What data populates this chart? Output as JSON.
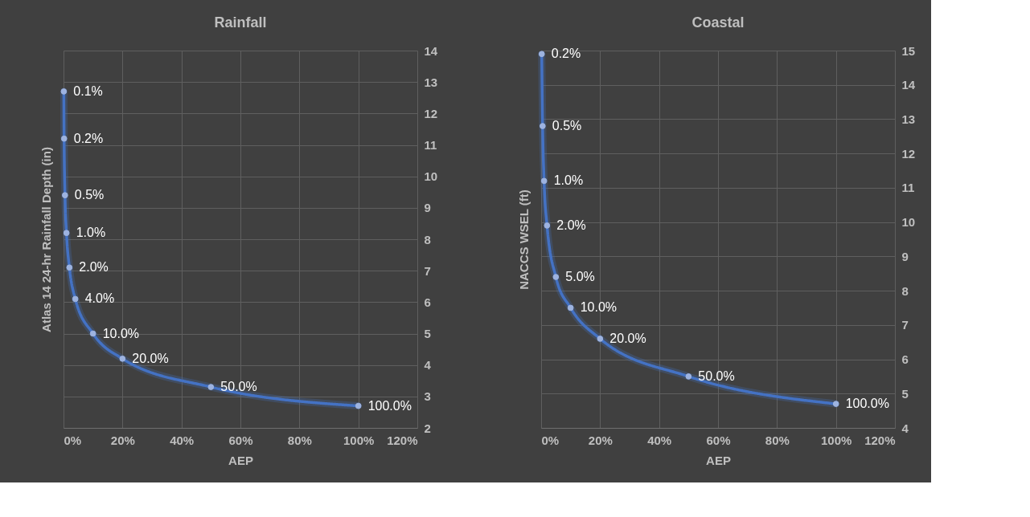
{
  "chart_data": [
    {
      "type": "line",
      "title": "Rainfall",
      "xlabel": "AEP",
      "ylabel": "Atlas 14 24-hr Rainfall Depth (in)",
      "color": "#4472c4",
      "marker": "circle",
      "grid": true,
      "legend": false,
      "x": [
        0.1,
        0.2,
        0.5,
        1,
        2,
        4,
        10,
        20,
        50,
        100
      ],
      "values": [
        12.7,
        11.2,
        9.4,
        8.2,
        7.1,
        6.1,
        5.0,
        4.2,
        3.3,
        2.7
      ],
      "annotations": [
        {
          "text": "0.1%",
          "x": 0.1,
          "y": 12.7
        },
        {
          "text": "0.2%",
          "x": 0.2,
          "y": 11.2
        },
        {
          "text": "0.5%",
          "x": 0.5,
          "y": 9.4
        },
        {
          "text": "1.0%",
          "x": 1,
          "y": 8.2
        },
        {
          "text": "2.0%",
          "x": 2,
          "y": 7.1
        },
        {
          "text": "4.0%",
          "x": 4,
          "y": 6.1
        },
        {
          "text": "10.0%",
          "x": 10,
          "y": 5.0
        },
        {
          "text": "20.0%",
          "x": 20,
          "y": 4.2
        },
        {
          "text": "50.0%",
          "x": 50,
          "y": 3.3
        },
        {
          "text": "100.0%",
          "x": 100,
          "y": 2.7
        }
      ],
      "xlim": [
        0,
        120
      ],
      "xticks": [
        {
          "value": 0,
          "label": "0%"
        },
        {
          "value": 20,
          "label": "20%"
        },
        {
          "value": 40,
          "label": "40%"
        },
        {
          "value": 60,
          "label": "60%"
        },
        {
          "value": 80,
          "label": "80%"
        },
        {
          "value": 100,
          "label": "100%"
        },
        {
          "value": 120,
          "label": "120%"
        }
      ],
      "ylim": [
        2,
        14
      ],
      "yticks": [
        2,
        3,
        4,
        5,
        6,
        7,
        8,
        9,
        10,
        11,
        12,
        13,
        14
      ]
    },
    {
      "type": "line",
      "title": "Coastal",
      "xlabel": "AEP",
      "ylabel": "NACCS WSEL (ft)",
      "color": "#4472c4",
      "marker": "circle",
      "grid": true,
      "legend": false,
      "x": [
        0.2,
        0.5,
        1,
        2,
        5,
        10,
        20,
        50,
        100
      ],
      "values": [
        14.9,
        12.8,
        11.2,
        9.9,
        8.4,
        7.5,
        6.6,
        5.5,
        4.7
      ],
      "annotations": [
        {
          "text": "0.2%",
          "x": 0.2,
          "y": 14.9
        },
        {
          "text": "0.5%",
          "x": 0.5,
          "y": 12.8
        },
        {
          "text": "1.0%",
          "x": 1,
          "y": 11.2
        },
        {
          "text": "2.0%",
          "x": 2,
          "y": 9.9
        },
        {
          "text": "5.0%",
          "x": 5,
          "y": 8.4
        },
        {
          "text": "10.0%",
          "x": 10,
          "y": 7.5
        },
        {
          "text": "20.0%",
          "x": 20,
          "y": 6.6
        },
        {
          "text": "50.0%",
          "x": 50,
          "y": 5.5
        },
        {
          "text": "100.0%",
          "x": 100,
          "y": 4.7
        }
      ],
      "xlim": [
        0,
        120
      ],
      "xticks": [
        {
          "value": 0,
          "label": "0%"
        },
        {
          "value": 20,
          "label": "20%"
        },
        {
          "value": 40,
          "label": "40%"
        },
        {
          "value": 60,
          "label": "60%"
        },
        {
          "value": 80,
          "label": "80%"
        },
        {
          "value": 100,
          "label": "100%"
        },
        {
          "value": 120,
          "label": "120%"
        }
      ],
      "ylim": [
        4,
        15
      ],
      "yticks": [
        4,
        5,
        6,
        7,
        8,
        9,
        10,
        11,
        12,
        13,
        14,
        15
      ]
    }
  ]
}
